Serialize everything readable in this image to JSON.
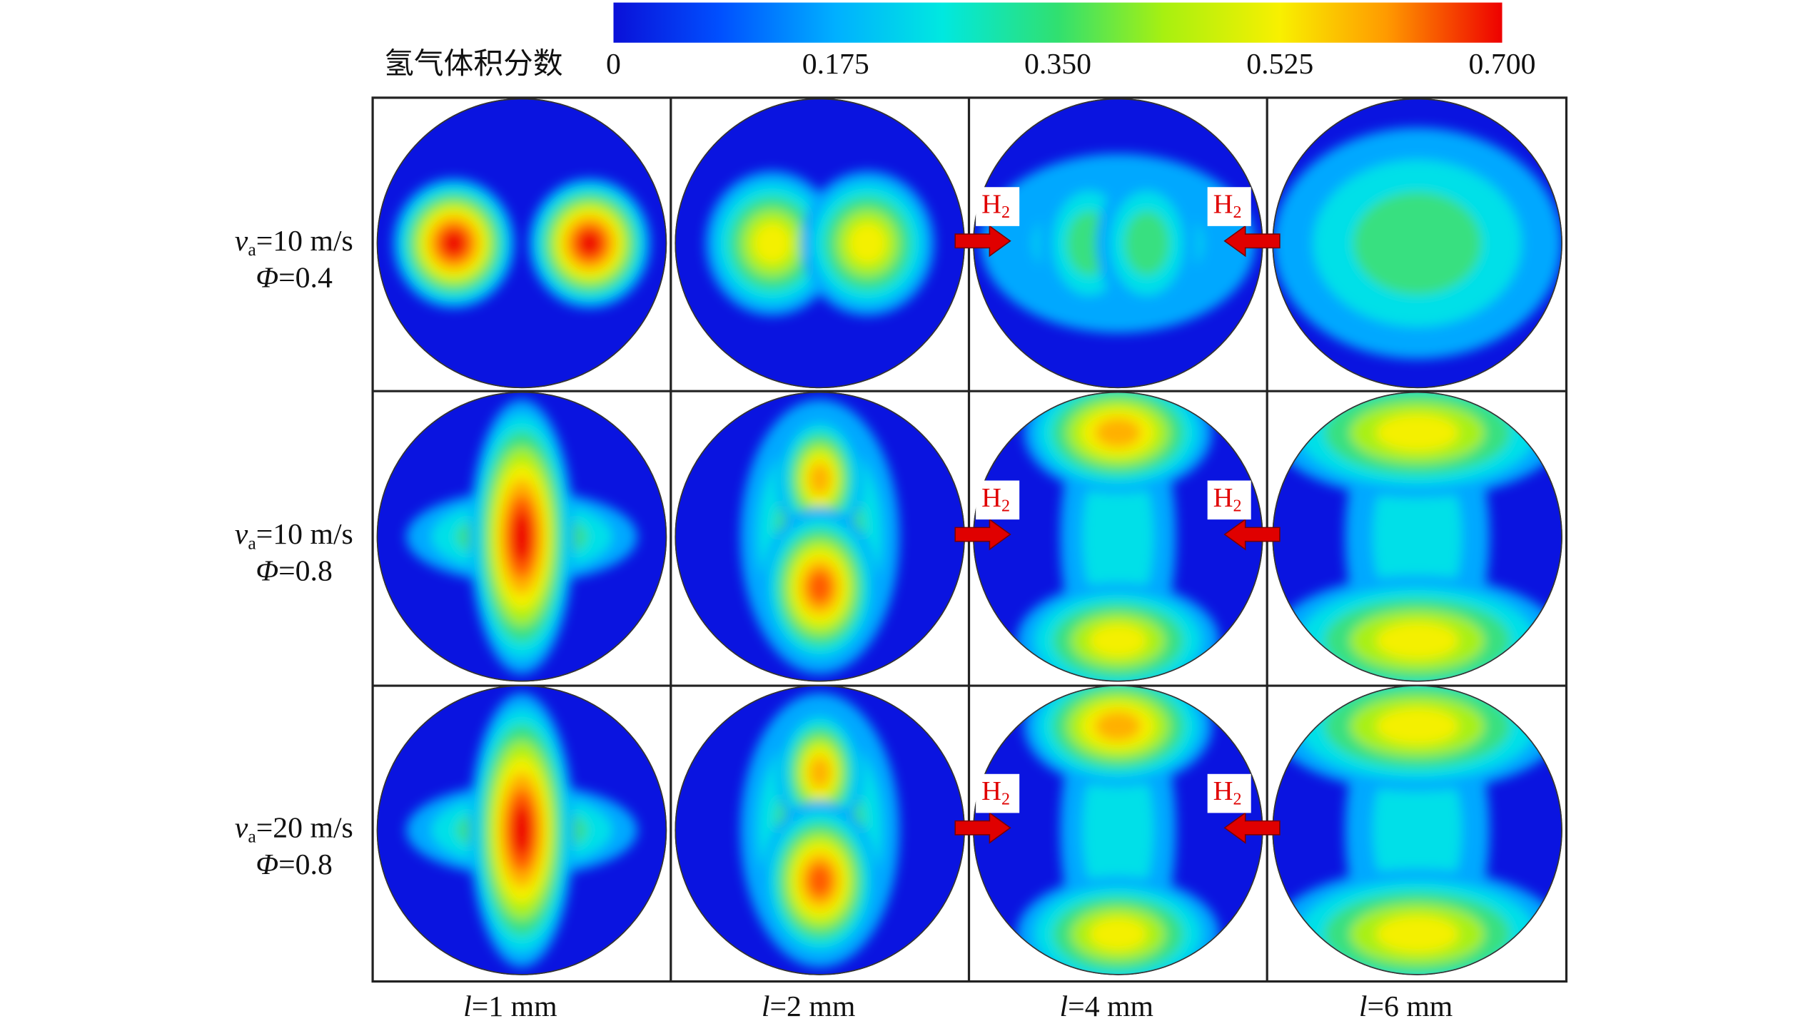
{
  "colorbar": {
    "label": "氢气体积分数",
    "ticks": [
      "0",
      "0.175",
      "0.350",
      "0.525",
      "0.700"
    ]
  },
  "rows": [
    {
      "var": "v",
      "sub": "a",
      "speed": "=10 m/s",
      "phi_symbol": "Φ",
      "phi": "=0.4"
    },
    {
      "var": "v",
      "sub": "a",
      "speed": "=10 m/s",
      "phi_symbol": "Φ",
      "phi": "=0.8"
    },
    {
      "var": "v",
      "sub": "a",
      "speed": "=20 m/s",
      "phi_symbol": "Φ",
      "phi": "=0.8"
    }
  ],
  "columns": [
    {
      "var": "l",
      "value": "=1 mm"
    },
    {
      "var": "l",
      "value": "=2 mm"
    },
    {
      "var": "l",
      "value": "=4 mm"
    },
    {
      "var": "l",
      "value": "=6 mm"
    }
  ],
  "inlet_label": {
    "symbol": "H",
    "sub": "2"
  }
}
